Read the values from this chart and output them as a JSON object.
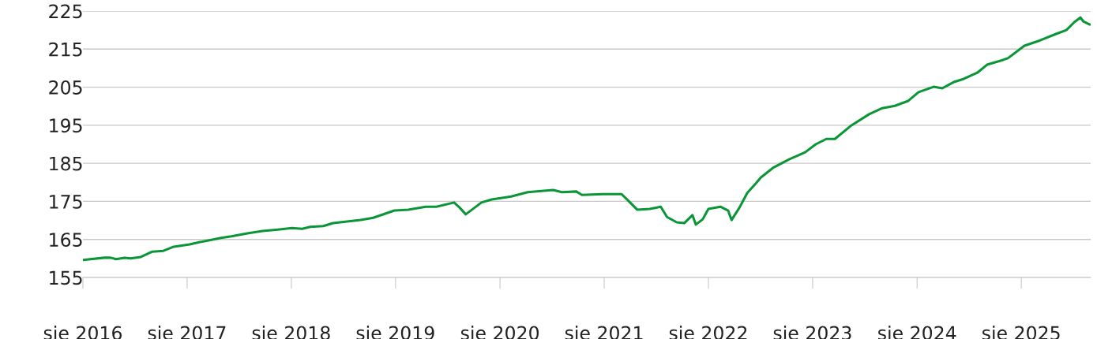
{
  "chart_data": {
    "type": "line",
    "x": [
      "2016-08-01",
      "2016-10-15",
      "2016-11-06",
      "2016-11-25",
      "2016-12-25",
      "2017-01-15",
      "2017-02-20",
      "2017-04-01",
      "2017-05-10",
      "2017-06-15",
      "2017-08-10",
      "2017-09-15",
      "2017-11-28",
      "2018-01-03",
      "2018-02-28",
      "2018-04-22",
      "2018-06-15",
      "2018-08-03",
      "2018-09-08",
      "2018-10-06",
      "2018-11-21",
      "2018-12-25",
      "2019-04-01",
      "2019-05-15",
      "2019-07-28",
      "2019-09-15",
      "2019-11-15",
      "2019-12-22",
      "2020-02-22",
      "2020-03-12",
      "2020-04-03",
      "2020-05-28",
      "2020-07-03",
      "2020-09-09",
      "2020-11-06",
      "2021-02-03",
      "2021-03-06",
      "2021-04-25",
      "2021-05-15",
      "2021-07-25",
      "2021-10-01",
      "2021-10-28",
      "2021-11-25",
      "2022-01-08",
      "2022-02-15",
      "2022-03-09",
      "2022-04-12",
      "2022-05-09",
      "2022-06-06",
      "2022-06-18",
      "2022-07-12",
      "2022-08-01",
      "2022-09-12",
      "2022-10-09",
      "2022-10-21",
      "2022-11-18",
      "2022-12-15",
      "2023-01-15",
      "2023-02-01",
      "2023-03-15",
      "2023-05-12",
      "2023-07-06",
      "2023-08-12",
      "2023-09-18",
      "2023-10-18",
      "2023-12-12",
      "2024-02-15",
      "2024-04-01",
      "2024-05-15",
      "2024-07-01",
      "2024-08-06",
      "2024-09-28",
      "2024-10-28",
      "2024-12-06",
      "2025-01-12",
      "2025-02-28",
      "2025-04-03",
      "2025-05-18",
      "2025-06-15",
      "2025-08-12",
      "2025-10-06",
      "2025-12-01",
      "2026-01-06",
      "2026-02-03",
      "2026-02-24",
      "2026-03-06",
      "2026-03-28"
    ],
    "series": [
      {
        "color": "#0a9537",
        "values": [
          159.6,
          160.2,
          160.2,
          159.8,
          160.2,
          160.0,
          160.4,
          161.8,
          162.0,
          163.1,
          163.7,
          164.3,
          165.4,
          165.8,
          166.6,
          167.2,
          167.6,
          168.0,
          167.8,
          168.3,
          168.5,
          169.3,
          170.1,
          170.7,
          172.6,
          172.8,
          173.6,
          173.6,
          174.7,
          173.4,
          171.6,
          174.7,
          175.5,
          176.3,
          177.4,
          178.0,
          177.4,
          177.6,
          176.7,
          176.9,
          176.9,
          174.9,
          172.8,
          173.0,
          173.6,
          170.9,
          169.5,
          169.3,
          171.4,
          168.9,
          170.3,
          173.0,
          173.6,
          172.6,
          170.1,
          173.4,
          177.2,
          179.8,
          181.3,
          183.8,
          186.1,
          187.9,
          190.0,
          191.4,
          191.4,
          194.8,
          197.9,
          199.5,
          200.1,
          201.4,
          203.7,
          205.1,
          204.7,
          206.3,
          207.2,
          208.8,
          210.9,
          211.9,
          212.6,
          215.9,
          217.3,
          219.0,
          220.0,
          222.1,
          223.3,
          222.3,
          221.5
        ]
      }
    ],
    "xlim": [
      "2016-08-01",
      "2026-04-01"
    ],
    "xticks": [
      {
        "value": "2016-08-01",
        "label": "sie 2016"
      },
      {
        "value": "2017-08-01",
        "label": "sie 2017"
      },
      {
        "value": "2018-08-01",
        "label": "sie 2018"
      },
      {
        "value": "2019-08-01",
        "label": "sie 2019"
      },
      {
        "value": "2020-08-01",
        "label": "sie 2020"
      },
      {
        "value": "2021-08-01",
        "label": "sie 2021"
      },
      {
        "value": "2022-08-01",
        "label": "sie 2022"
      },
      {
        "value": "2023-08-01",
        "label": "sie 2023"
      },
      {
        "value": "2024-08-01",
        "label": "sie 2024"
      },
      {
        "value": "2025-08-01",
        "label": "sie 2025"
      }
    ],
    "ylim": [
      155,
      225
    ],
    "yticks": [
      155,
      165,
      175,
      185,
      195,
      205,
      215,
      225
    ],
    "grid": "y",
    "marker": "none",
    "line_style": "solid"
  }
}
